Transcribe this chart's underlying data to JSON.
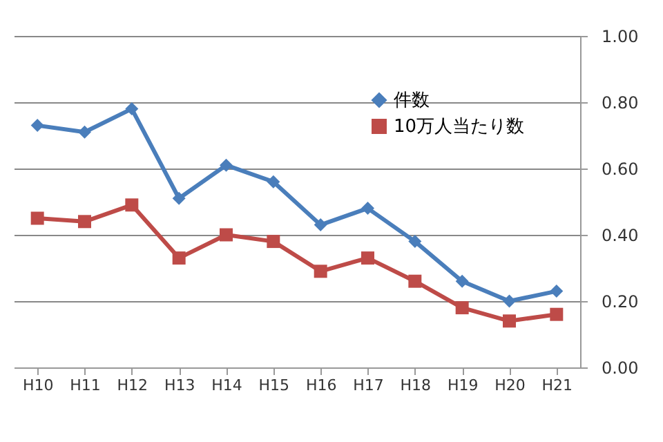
{
  "chart_data": {
    "type": "line",
    "categories": [
      "H10",
      "H11",
      "H12",
      "H13",
      "H14",
      "H15",
      "H16",
      "H17",
      "H18",
      "H19",
      "H20",
      "H21"
    ],
    "series": [
      {
        "name": "件数",
        "color": "#4a7ebb",
        "marker": "diamond",
        "values": [
          0.73,
          0.71,
          0.78,
          0.51,
          0.61,
          0.56,
          0.43,
          0.48,
          0.38,
          0.26,
          0.2,
          0.23
        ]
      },
      {
        "name": "10万人当たり数",
        "color": "#be4b48",
        "marker": "square",
        "values": [
          0.45,
          0.44,
          0.49,
          0.33,
          0.4,
          0.38,
          0.29,
          0.33,
          0.26,
          0.18,
          0.14,
          0.16
        ]
      }
    ],
    "ylim": [
      0,
      1
    ],
    "yticks": [
      {
        "value": 0,
        "label": "0.00"
      },
      {
        "value": 0.2,
        "label": "0.20"
      },
      {
        "value": 0.4,
        "label": "0.40"
      },
      {
        "value": 0.6,
        "label": "0.60"
      },
      {
        "value": 0.8,
        "label": "0.80"
      },
      {
        "value": 1,
        "label": "1.00"
      }
    ],
    "grid": "y",
    "legend": "top right"
  }
}
